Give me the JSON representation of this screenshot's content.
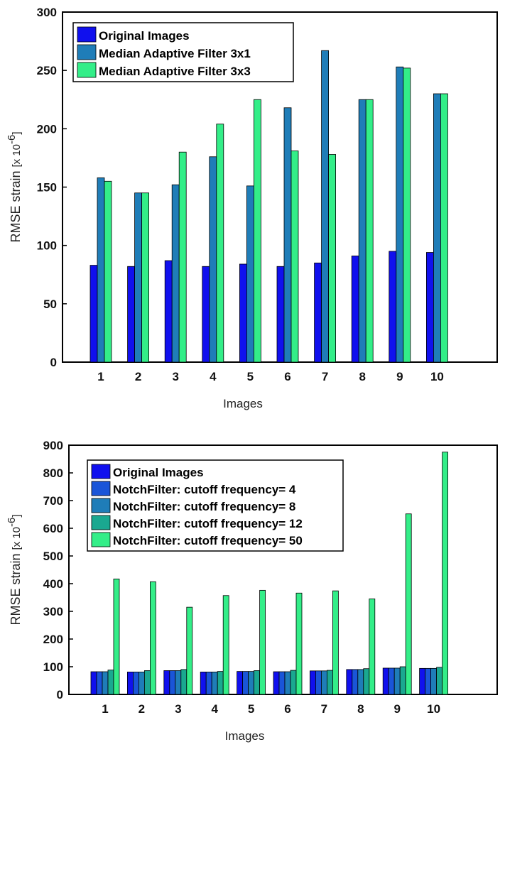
{
  "chart_data": [
    {
      "type": "bar",
      "xlabel": "Images",
      "ylabel": "RMSE  strain",
      "yunit": "[x 10",
      "yunit_exp": "-6",
      "yunit_close": "]",
      "ylim": [
        0,
        300
      ],
      "yticks": [
        0,
        50,
        100,
        150,
        200,
        250,
        300
      ],
      "categories": [
        "1",
        "2",
        "3",
        "4",
        "5",
        "6",
        "7",
        "8",
        "9",
        "10"
      ],
      "legend_position": "top-left",
      "grid": false,
      "series": [
        {
          "name": "Original Images",
          "color": "#1010ee",
          "values": [
            83,
            82,
            87,
            82,
            84,
            82,
            85,
            91,
            95,
            94
          ]
        },
        {
          "name": "Median Adaptive Filter 3x1",
          "color": "#1f7db8",
          "values": [
            158,
            145,
            152,
            176,
            151,
            218,
            267,
            225,
            253,
            230
          ]
        },
        {
          "name": "Median Adaptive Filter 3x3",
          "color": "#33ee88",
          "values": [
            155,
            145,
            180,
            204,
            225,
            181,
            178,
            225,
            252,
            230
          ]
        }
      ]
    },
    {
      "type": "bar",
      "xlabel": "Images",
      "ylabel": "RMSE  strain",
      "yunit": "[x 10",
      "yunit_exp": "-6",
      "yunit_close": "]",
      "ylim": [
        0,
        900
      ],
      "yticks": [
        0,
        100,
        200,
        300,
        400,
        500,
        600,
        700,
        800,
        900
      ],
      "categories": [
        "1",
        "2",
        "3",
        "4",
        "5",
        "6",
        "7",
        "8",
        "9",
        "10"
      ],
      "legend_position": "top-left",
      "grid": false,
      "series": [
        {
          "name": "Original Images",
          "color": "#1010ee",
          "values": [
            82,
            81,
            86,
            81,
            83,
            82,
            85,
            90,
            95,
            94
          ]
        },
        {
          "name": "NotchFilter: cutoff frequency= 4",
          "color": "#1a55d8",
          "values": [
            82,
            81,
            86,
            81,
            83,
            82,
            85,
            90,
            95,
            94
          ]
        },
        {
          "name": "NotchFilter: cutoff frequency= 8",
          "color": "#1f7db8",
          "values": [
            82,
            81,
            86,
            81,
            83,
            82,
            85,
            90,
            95,
            94
          ]
        },
        {
          "name": "NotchFilter: cutoff frequency= 12",
          "color": "#1aa890",
          "values": [
            88,
            86,
            90,
            83,
            86,
            87,
            87,
            93,
            100,
            98
          ]
        },
        {
          "name": "NotchFilter: cutoff frequency= 50",
          "color": "#33ee88",
          "values": [
            417,
            407,
            315,
            357,
            376,
            366,
            374,
            345,
            652,
            875
          ]
        }
      ]
    }
  ]
}
